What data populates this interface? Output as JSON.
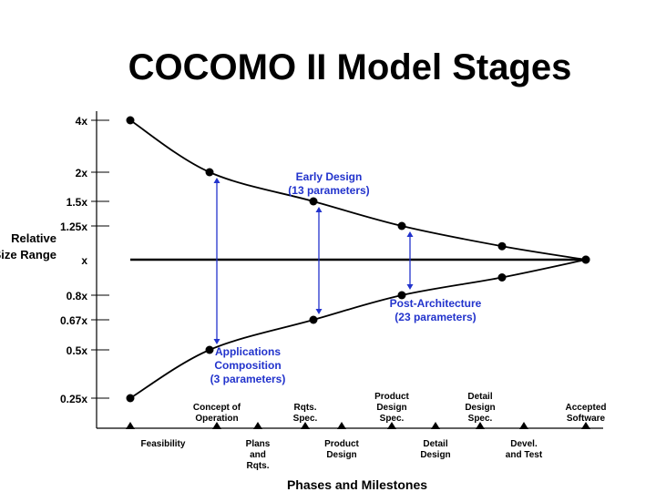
{
  "title": "COCOMO II Model Stages",
  "colors": {
    "curve": "#000000",
    "annotation": "#2233cc",
    "axis": "#000000"
  },
  "chart_data": {
    "type": "line",
    "title": "COCOMO II Model Stages",
    "ylabel": [
      "Relative",
      "Size Range"
    ],
    "xlabel": "Phases and Milestones",
    "y_ticks": [
      {
        "label": "4x",
        "value": 4
      },
      {
        "label": "2x",
        "value": 2
      },
      {
        "label": "1.5x",
        "value": 1.5
      },
      {
        "label": "1.25x",
        "value": 1.25
      },
      {
        "label": "x",
        "value": 1
      },
      {
        "label": "0.8x",
        "value": 0.8
      },
      {
        "label": "0.67x",
        "value": 0.67
      },
      {
        "label": "0.5x",
        "value": 0.5
      },
      {
        "label": "0.25x",
        "value": 0.25
      }
    ],
    "milestones": [
      {
        "label": [
          "Feasibility"
        ],
        "row": "lower"
      },
      {
        "label": [
          "Concept of",
          "Operation"
        ],
        "row": "upper"
      },
      {
        "label": [
          "Plans",
          "and",
          "Rqts."
        ],
        "row": "lower"
      },
      {
        "label": [
          "Rqts.",
          "Spec."
        ],
        "row": "upper"
      },
      {
        "label": [
          "Product",
          "Design"
        ],
        "row": "lower"
      },
      {
        "label": [
          "Product",
          "Design",
          "Spec."
        ],
        "row": "upper"
      },
      {
        "label": [
          "Detail",
          "Design"
        ],
        "row": "lower"
      },
      {
        "label": [
          "Detail",
          "Design",
          "Spec."
        ],
        "row": "upper"
      },
      {
        "label": [
          "Devel.",
          "and Test"
        ],
        "row": "lower"
      },
      {
        "label": [
          "Accepted",
          "Software"
        ],
        "row": "upper"
      }
    ],
    "series": [
      {
        "name": "upper",
        "x": [
          0,
          1,
          2,
          3,
          4,
          5
        ],
        "y": [
          4,
          2,
          1.5,
          1.25,
          1.1,
          1
        ]
      },
      {
        "name": "lower",
        "x": [
          0,
          1,
          2,
          3,
          4,
          5
        ],
        "y": [
          0.25,
          0.5,
          0.67,
          0.8,
          0.9,
          1
        ]
      }
    ],
    "reference_line": {
      "y": 1
    },
    "annotations": [
      {
        "text": [
          "Applications",
          "Composition",
          "(3 parameters)"
        ],
        "x": 1,
        "y_from": 0.5,
        "y_to": 2
      },
      {
        "text": [
          "Early Design",
          "(13 parameters)"
        ],
        "x": 2,
        "y_from": 0.67,
        "y_to": 1.5
      },
      {
        "text": [
          "Post-Architecture",
          "(23 parameters)"
        ],
        "x": 3,
        "y_from": 0.8,
        "y_to": 1.25
      }
    ],
    "grid": false
  }
}
